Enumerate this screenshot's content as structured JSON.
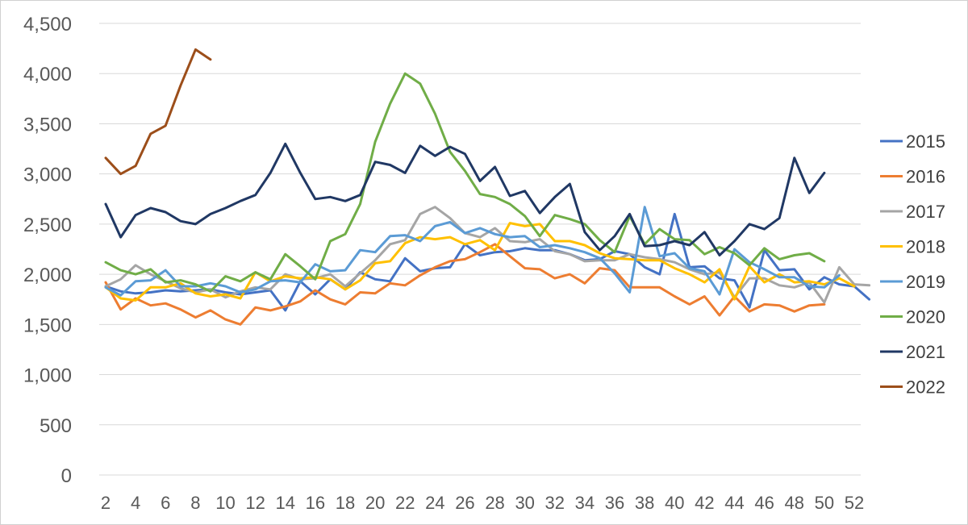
{
  "chart_data": {
    "type": "line",
    "title": "",
    "xlabel": "",
    "ylabel": "",
    "ylim": [
      0,
      4500
    ],
    "xlim": [
      2,
      52
    ],
    "y_ticks": [
      "0",
      "500",
      "1,000",
      "1,500",
      "2,000",
      "2,500",
      "3,000",
      "3,500",
      "4,000",
      "4,500"
    ],
    "y_tick_values": [
      0,
      500,
      1000,
      1500,
      2000,
      2500,
      3000,
      3500,
      4000,
      4500
    ],
    "x_ticks": [
      2,
      4,
      6,
      8,
      10,
      12,
      14,
      16,
      18,
      20,
      22,
      24,
      26,
      28,
      30,
      32,
      34,
      36,
      38,
      40,
      42,
      44,
      46,
      48,
      50,
      52
    ],
    "grid": "horizontal",
    "legend_position": "right",
    "series": [
      {
        "name": "2015",
        "color": "#4472C4",
        "start_week": 2,
        "values": [
          1880,
          1830,
          1810,
          1820,
          1840,
          1830,
          1840,
          1850,
          1820,
          1800,
          1820,
          1840,
          1640,
          1930,
          1800,
          1950,
          1850,
          2020,
          1950,
          1930,
          2160,
          2030,
          2060,
          2070,
          2300,
          2190,
          2220,
          2230,
          2260,
          2240,
          2240,
          2200,
          2140,
          2150,
          2230,
          2200,
          2070,
          2000,
          2600,
          2070,
          2080,
          1960,
          1940,
          1670,
          2240,
          2040,
          2050,
          1850,
          1970,
          1900,
          1880,
          1750
        ]
      },
      {
        "name": "2016",
        "color": "#ED7D31",
        "start_week": 2,
        "values": [
          1920,
          1650,
          1760,
          1690,
          1710,
          1650,
          1570,
          1640,
          1550,
          1500,
          1670,
          1640,
          1680,
          1730,
          1840,
          1750,
          1700,
          1820,
          1810,
          1910,
          1890,
          1990,
          2070,
          2130,
          2150,
          2220,
          2300,
          2180,
          2060,
          2050,
          1960,
          2000,
          1910,
          2060,
          2040,
          1870,
          1870,
          1870,
          1780,
          1700,
          1780,
          1590,
          1780,
          1630,
          1700,
          1690,
          1630,
          1690,
          1700
        ]
      },
      {
        "name": "2017",
        "color": "#A5A5A5",
        "start_week": 2,
        "values": [
          1880,
          1950,
          2090,
          2000,
          1930,
          1860,
          1820,
          1850,
          1770,
          1830,
          1870,
          1850,
          2000,
          1950,
          1960,
          2000,
          1880,
          2010,
          2140,
          2300,
          2340,
          2600,
          2670,
          2560,
          2410,
          2370,
          2460,
          2330,
          2320,
          2350,
          2230,
          2200,
          2130,
          2140,
          2140,
          2200,
          2170,
          2150,
          2120,
          2050,
          2000,
          2020,
          1770,
          1960,
          1960,
          1890,
          1870,
          1920,
          1720,
          2070,
          1900,
          1890
        ]
      },
      {
        "name": "2018",
        "color": "#FFC000",
        "start_week": 2,
        "values": [
          1870,
          1760,
          1740,
          1870,
          1870,
          1910,
          1810,
          1780,
          1800,
          1760,
          2020,
          1930,
          1980,
          1960,
          1970,
          1950,
          1850,
          1940,
          2110,
          2130,
          2310,
          2370,
          2350,
          2370,
          2300,
          2340,
          2240,
          2510,
          2480,
          2500,
          2330,
          2330,
          2290,
          2210,
          2160,
          2150,
          2140,
          2140,
          2060,
          2000,
          1920,
          2050,
          1750,
          2080,
          1920,
          2000,
          1920,
          1930,
          1900,
          1960,
          1880
        ]
      },
      {
        "name": "2019",
        "color": "#5B9BD5",
        "start_week": 2,
        "values": [
          1870,
          1790,
          1930,
          1940,
          2040,
          1880,
          1880,
          1910,
          1880,
          1820,
          1850,
          1930,
          1940,
          1920,
          2100,
          2030,
          2040,
          2240,
          2220,
          2380,
          2390,
          2330,
          2480,
          2520,
          2410,
          2460,
          2400,
          2370,
          2380,
          2270,
          2290,
          2260,
          2220,
          2160,
          2010,
          1820,
          2670,
          2180,
          2210,
          2060,
          2030,
          1800,
          2250,
          2120,
          2050,
          1970,
          1970,
          1880,
          1870,
          1990
        ]
      },
      {
        "name": "2020",
        "color": "#70AD47",
        "start_week": 2,
        "values": [
          2120,
          2040,
          2000,
          2050,
          1920,
          1940,
          1900,
          1830,
          1980,
          1930,
          2020,
          1950,
          2200,
          2080,
          1950,
          2330,
          2400,
          2700,
          3320,
          3700,
          4000,
          3900,
          3600,
          3220,
          3030,
          2800,
          2770,
          2700,
          2580,
          2380,
          2590,
          2550,
          2500,
          2340,
          2220,
          2580,
          2300,
          2450,
          2350,
          2340,
          2200,
          2270,
          2210,
          2090,
          2260,
          2150,
          2190,
          2210,
          2130
        ]
      },
      {
        "name": "2021",
        "color": "#203864",
        "start_week": 2,
        "values": [
          2700,
          2370,
          2590,
          2660,
          2620,
          2530,
          2500,
          2600,
          2660,
          2730,
          2790,
          3010,
          3300,
          3010,
          2750,
          2770,
          2730,
          2790,
          3120,
          3090,
          3010,
          3280,
          3180,
          3270,
          3200,
          2930,
          3070,
          2780,
          2830,
          2610,
          2770,
          2900,
          2420,
          2240,
          2380,
          2600,
          2280,
          2290,
          2330,
          2290,
          2420,
          2190,
          2330,
          2500,
          2450,
          2560,
          3160,
          2810,
          3010
        ]
      },
      {
        "name": "2022",
        "color": "#9C4E1A",
        "start_week": 2,
        "values": [
          3160,
          3000,
          3080,
          3400,
          3480,
          3880,
          4240,
          4140
        ]
      }
    ]
  }
}
